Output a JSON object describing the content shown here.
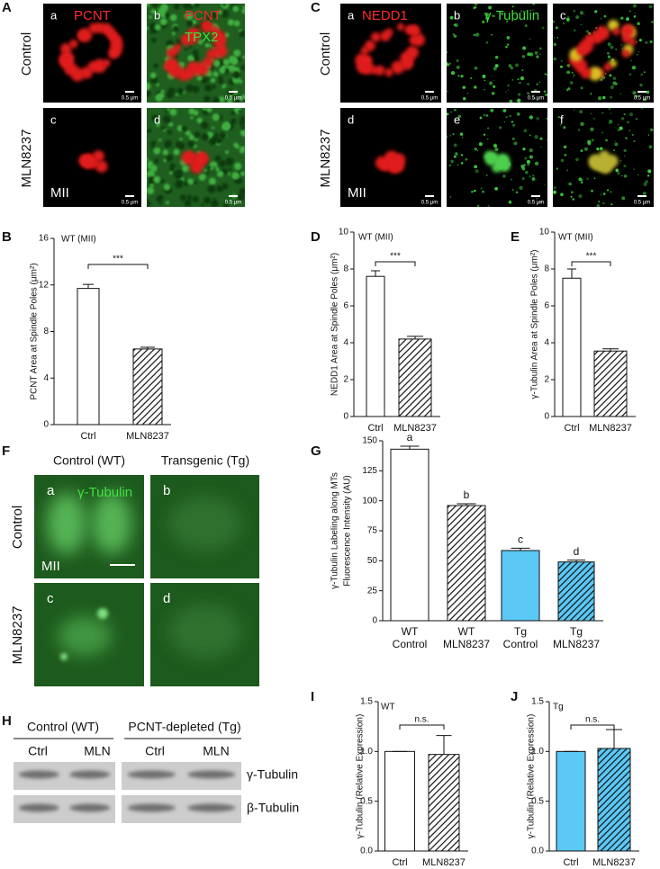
{
  "figure": {
    "A": {
      "label": "A",
      "row_labels": [
        "Control",
        "MLN8237"
      ],
      "stage": "MII",
      "tiles": [
        {
          "letter": "a",
          "channels": [
            {
              "text": "PCNT",
              "color": "#ff2a2a"
            }
          ],
          "scale": "0.5 μm"
        },
        {
          "letter": "b",
          "channels": [
            {
              "text": "PCNT",
              "color": "#ff2a2a"
            },
            {
              "text": "TPX2",
              "color": "#3ee03e"
            }
          ],
          "scale": "0.5 μm"
        },
        {
          "letter": "c",
          "scale": "0.5 μm"
        },
        {
          "letter": "d",
          "scale": "0.5 μm"
        }
      ]
    },
    "C": {
      "label": "C",
      "row_labels": [
        "Control",
        "MLN8237"
      ],
      "stage": "MII",
      "tiles": [
        {
          "letter": "a",
          "channels": [
            {
              "text": "NEDD1",
              "color": "#ff2a2a"
            }
          ],
          "scale": "0.5 μm"
        },
        {
          "letter": "b",
          "channels": [
            {
              "text": "γ-Tubulin",
              "color": "#3ee03e"
            }
          ],
          "scale": "0.5 μm"
        },
        {
          "letter": "c",
          "scale": "0.5 μm"
        },
        {
          "letter": "d",
          "scale": "0.5 μm"
        },
        {
          "letter": "e",
          "scale": "0.5 μm"
        },
        {
          "letter": "f",
          "scale": "0.5 μm"
        }
      ]
    },
    "F": {
      "label": "F",
      "columns": [
        "Control (WT)",
        "Transgenic (Tg)"
      ],
      "row_labels": [
        "Control",
        "MLN8237"
      ],
      "stage": "MII",
      "tiles": [
        {
          "letter": "a",
          "channels": [
            {
              "text": "γ-Tubulin",
              "color": "#3ee03e"
            }
          ]
        },
        {
          "letter": "b"
        },
        {
          "letter": "c"
        },
        {
          "letter": "d"
        }
      ]
    },
    "H": {
      "label": "H",
      "groups": [
        "Control (WT)",
        "PCNT-depleted (Tg)"
      ],
      "lanes": [
        "Ctrl",
        "MLN",
        "Ctrl",
        "MLN"
      ],
      "bands": [
        "γ-Tubulin",
        "β-Tubulin"
      ]
    }
  },
  "chart_data": [
    {
      "type": "bar",
      "panel": "B",
      "annotation": "WT (MII)",
      "ylabel": "PCNT Area at Spindle Poles (μm²)",
      "categories": [
        "Ctrl",
        "MLN8237"
      ],
      "values": [
        11.7,
        6.5
      ],
      "errors": [
        0.35,
        0.15
      ],
      "colors": [
        "#ffffff",
        "#ffffff"
      ],
      "hatch": [
        false,
        true
      ],
      "significance": "***",
      "ylim": [
        0,
        16
      ],
      "yticks": [
        0,
        4,
        8,
        12,
        16
      ]
    },
    {
      "type": "bar",
      "panel": "D",
      "annotation": "WT (MII)",
      "ylabel": "NEDD1 Area at Spindle Poles (μm²)",
      "categories": [
        "Ctrl",
        "MLN8237"
      ],
      "values": [
        7.6,
        4.2
      ],
      "errors": [
        0.3,
        0.15
      ],
      "colors": [
        "#ffffff",
        "#ffffff"
      ],
      "hatch": [
        false,
        true
      ],
      "significance": "***",
      "ylim": [
        0,
        10
      ],
      "yticks": [
        0,
        2,
        4,
        6,
        8,
        10
      ]
    },
    {
      "type": "bar",
      "panel": "E",
      "annotation": "WT (MII)",
      "ylabel": "γ-Tubulin Area at Spindle Poles (μm²)",
      "categories": [
        "Ctrl",
        "MLN8237"
      ],
      "values": [
        7.5,
        3.55
      ],
      "errors": [
        0.5,
        0.12
      ],
      "colors": [
        "#ffffff",
        "#ffffff"
      ],
      "hatch": [
        false,
        true
      ],
      "significance": "***",
      "ylim": [
        0,
        10
      ],
      "yticks": [
        0,
        2,
        4,
        6,
        8,
        10
      ]
    },
    {
      "type": "bar",
      "panel": "G",
      "ylabel": [
        "γ-Tubulin Labeling along MTs",
        "Fluorescence Intensity (AU)"
      ],
      "categories": [
        [
          "WT",
          "Control"
        ],
        [
          "WT",
          "MLN8237"
        ],
        [
          "Tg",
          "Control"
        ],
        [
          "Tg",
          "MLN8237"
        ]
      ],
      "values": [
        143,
        96,
        58.5,
        49
      ],
      "errors": [
        2.5,
        1.5,
        2,
        1.5
      ],
      "letters": [
        "a",
        "b",
        "c",
        "d"
      ],
      "colors": [
        "#ffffff",
        "#ffffff",
        "#5bc8f5",
        "#5bc8f5"
      ],
      "hatch": [
        false,
        true,
        false,
        true
      ],
      "ylim": [
        0,
        150
      ],
      "yticks": [
        0,
        25,
        50,
        75,
        100,
        125,
        150
      ]
    },
    {
      "type": "bar",
      "panel": "I",
      "annotation": "WT",
      "ylabel": "γ-Tubulin (Relative Expression)",
      "categories": [
        "Ctrl",
        "MLN8237"
      ],
      "values": [
        1.0,
        0.97
      ],
      "errors": [
        0,
        0.19
      ],
      "colors": [
        "#ffffff",
        "#ffffff"
      ],
      "hatch": [
        false,
        true
      ],
      "significance": "n.s.",
      "ylim": [
        0,
        1.5
      ],
      "yticks": [
        {
          "value": 0,
          "label": "0.0"
        },
        {
          "value": 0.5,
          "label": "0.5"
        },
        {
          "value": 1,
          "label": "1.0"
        },
        {
          "value": 1.5,
          "label": "1.5"
        }
      ]
    },
    {
      "type": "bar",
      "panel": "J",
      "annotation": "Tg",
      "ylabel": "γ-Tubulin (Relative Expression)",
      "categories": [
        "Ctrl",
        "MLN8237"
      ],
      "values": [
        1.0,
        1.03
      ],
      "errors": [
        0,
        0.19
      ],
      "colors": [
        "#5bc8f5",
        "#5bc8f5"
      ],
      "hatch": [
        false,
        true
      ],
      "significance": "n.s.",
      "ylim": [
        0,
        1.5
      ],
      "yticks": [
        {
          "value": 0,
          "label": "0.0"
        },
        {
          "value": 0.5,
          "label": "0.5"
        },
        {
          "value": 1,
          "label": "1.0"
        },
        {
          "value": 1.5,
          "label": "1.5"
        }
      ]
    }
  ]
}
